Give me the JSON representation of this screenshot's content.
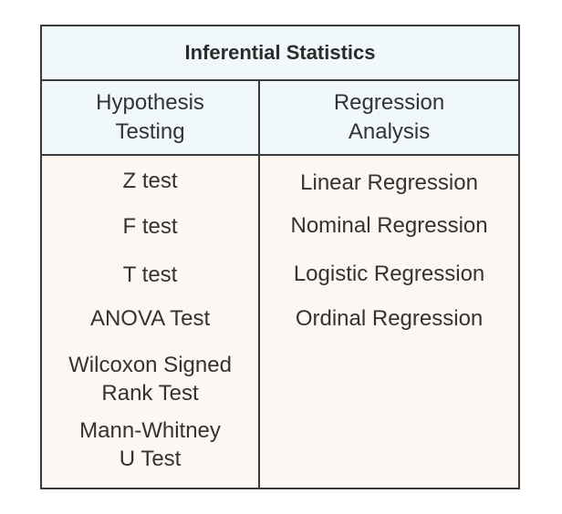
{
  "title": "Inferential Statistics",
  "columns": [
    {
      "header": "Hypothesis\nTesting",
      "items": [
        "Z test",
        "F test",
        "T test",
        "ANOVA Test",
        "Wilcoxon Signed\nRank Test",
        "Mann-Whitney\nU Test"
      ]
    },
    {
      "header": "Regression\nAnalysis",
      "items": [
        "Linear Regression",
        "Nominal Regression",
        "Logistic Regression",
        "Ordinal Regression"
      ]
    }
  ]
}
